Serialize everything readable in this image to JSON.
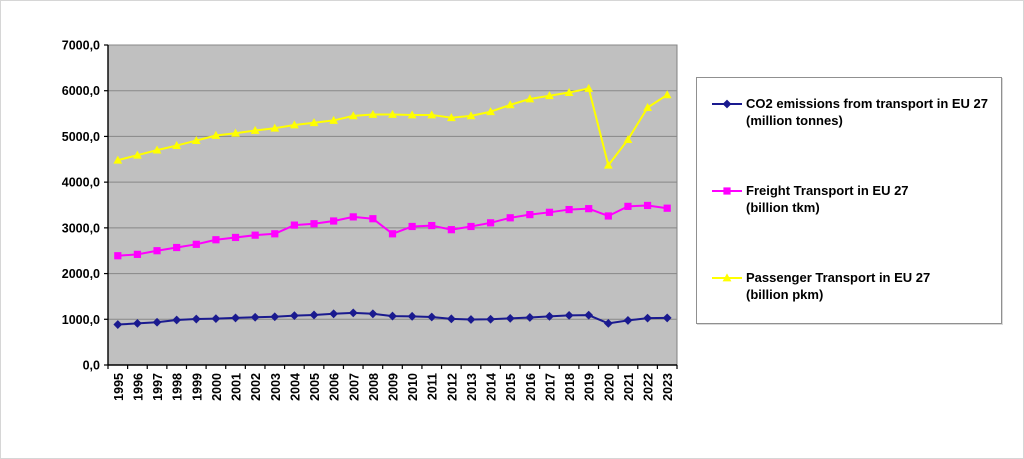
{
  "chart_data": {
    "type": "line",
    "title": "",
    "xlabel": "",
    "ylabel": "",
    "ylim": [
      0,
      7000
    ],
    "grid": "horizontal",
    "legend_position": "right",
    "plot_bg_color": "#c0c0c0",
    "gridline_color": "#878787",
    "axis_color": "#000000",
    "plot_border_color": "#808080",
    "categories": [
      "1995",
      "1996",
      "1997",
      "1998",
      "1999",
      "2000",
      "2001",
      "2002",
      "2003",
      "2004",
      "2005",
      "2006",
      "2007",
      "2008",
      "2009",
      "2010",
      "2011",
      "2012",
      "2013",
      "2014",
      "2015",
      "2016",
      "2017",
      "2018",
      "2019",
      "2020",
      "2021",
      "2022",
      "2023"
    ],
    "y_tick_values": [
      0,
      1000,
      2000,
      3000,
      4000,
      5000,
      6000,
      7000
    ],
    "y_tick_labels": [
      "0,0",
      "1000,0",
      "2000,0",
      "3000,0",
      "4000,0",
      "5000,0",
      "6000,0",
      "7000,0"
    ],
    "series": [
      {
        "name": "CO2 emissions from transport in EU 27 (million tonnes)",
        "legend_line1": "CO2 emissions from transport in EU 27",
        "legend_line2": "(million tonnes)",
        "color": "#1a1a8f",
        "marker": "diamond",
        "marker_icon": "diamond-marker-icon",
        "values": [
          885,
          910,
          935,
          985,
          1005,
          1015,
          1030,
          1045,
          1055,
          1080,
          1095,
          1120,
          1140,
          1120,
          1070,
          1065,
          1050,
          1010,
          995,
          1000,
          1020,
          1040,
          1065,
          1085,
          1090,
          910,
          975,
          1025,
          1030
        ]
      },
      {
        "name": "Freight Transport in EU 27 (billion tkm)",
        "legend_line1": "Freight Transport in EU 27",
        "legend_line2": "(billion tkm)",
        "color": "#ff00ff",
        "marker": "square",
        "marker_icon": "square-marker-icon",
        "values": [
          2390,
          2420,
          2500,
          2570,
          2640,
          2740,
          2790,
          2840,
          2870,
          3060,
          3090,
          3150,
          3240,
          3200,
          2870,
          3030,
          3050,
          2960,
          3030,
          3110,
          3220,
          3290,
          3340,
          3400,
          3420,
          3260,
          3470,
          3490,
          3430
        ]
      },
      {
        "name": "Passenger Transport in EU 27 (billion pkm)",
        "legend_line1": "Passenger Transport in EU 27",
        "legend_line2": "(billion pkm)",
        "color": "#ffff00",
        "marker": "triangle",
        "marker_icon": "triangle-marker-icon",
        "values": [
          4480,
          4590,
          4700,
          4800,
          4910,
          5020,
          5070,
          5130,
          5180,
          5250,
          5300,
          5350,
          5450,
          5480,
          5480,
          5470,
          5470,
          5410,
          5450,
          5540,
          5690,
          5820,
          5890,
          5960,
          6050,
          4370,
          4930,
          5630,
          5910
        ]
      }
    ]
  }
}
